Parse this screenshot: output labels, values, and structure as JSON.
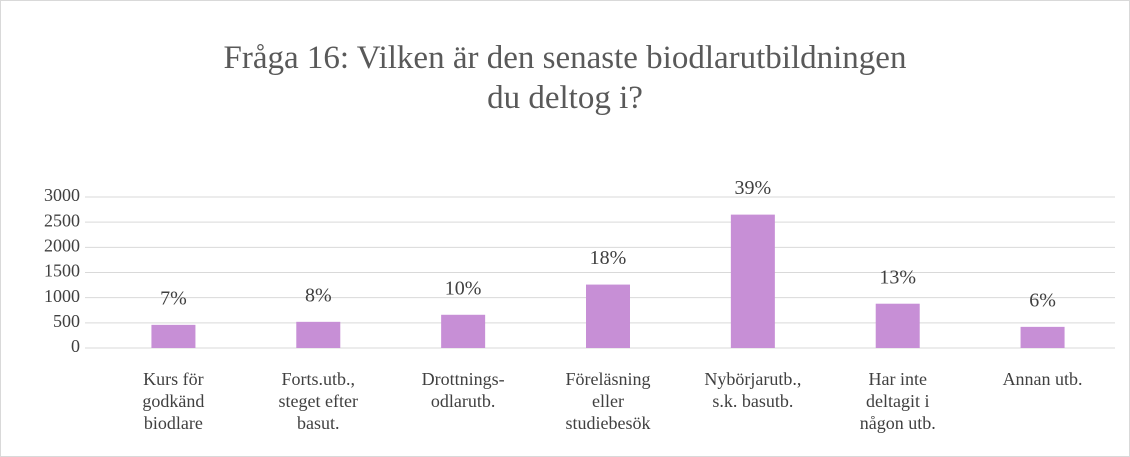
{
  "chart_data": {
    "type": "bar",
    "title": "Fråga 16: Vilken är den senaste biodlarutbildningen du deltog i?",
    "categories": [
      "Kurs för\ngodkänd\nbiodlare",
      "Forts.utb.,\nsteget efter\nbasut.",
      "Drottnings-\nodlarutb.",
      "Föreläsning\neller\nstudiebesök",
      "Nybörjarutb.,\ns.k. basutb.",
      "Har inte\ndeltagit i\nnågon utb.",
      "Annan utb."
    ],
    "values": [
      460,
      520,
      660,
      1260,
      2650,
      880,
      420
    ],
    "value_labels": [
      "7%",
      "8%",
      "10%",
      "18%",
      "39%",
      "13%",
      "6%"
    ],
    "color": "#c78fd6",
    "ylim": [
      0,
      3000
    ],
    "yticks": [
      0,
      500,
      1000,
      1500,
      2000,
      2500,
      3000
    ],
    "grid": true
  }
}
